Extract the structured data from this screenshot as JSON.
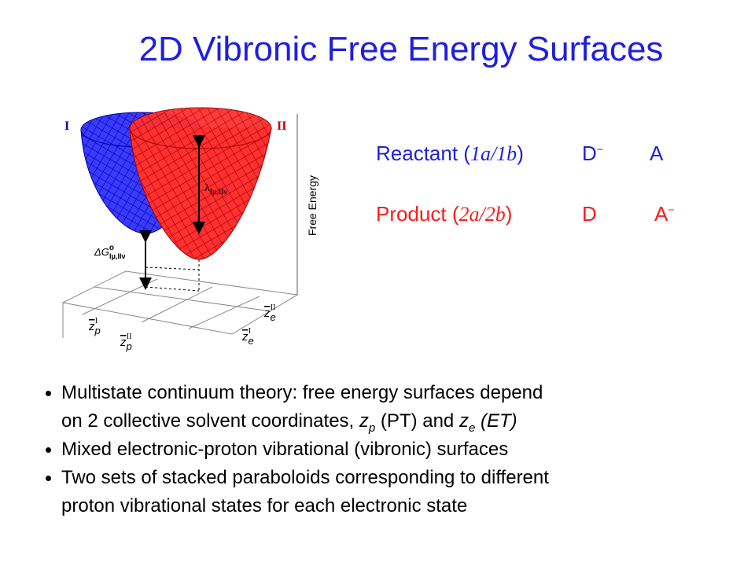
{
  "title": "2D Vibronic Free Energy Surfaces",
  "figure": {
    "surface_labels": [
      "I",
      "II"
    ],
    "axis_label": "Free Energy",
    "lambda_label": {
      "symbol": "λ",
      "subscript": "Iμ,IIν"
    },
    "delta_g_label": {
      "symbol": "ΔG",
      "superscript": "o",
      "subscript": "Iμ,IIν"
    },
    "coordinate_labels": [
      {
        "symbol": "z",
        "sub": "p",
        "sup": "I"
      },
      {
        "symbol": "z",
        "sub": "p",
        "sup": "II"
      },
      {
        "symbol": "z",
        "sub": "e",
        "sup": "I"
      },
      {
        "symbol": "z",
        "sub": "e",
        "sup": "II"
      }
    ]
  },
  "states": [
    {
      "label": "Reactant (",
      "index": "1a/1b",
      "close": ")",
      "donor": "D",
      "donor_charge": "−",
      "acceptor": "A"
    },
    {
      "label": "Product (",
      "index": "2a/2b",
      "close": ")",
      "donor": "D",
      "acceptor": "A",
      "acceptor_charge": "−"
    }
  ],
  "bullets": [
    {
      "line1": "Multistate continuum theory: free energy surfaces depend",
      "line2": {
        "start": "on 2 collective solvent coordinates, ",
        "var1": "z",
        "sub1": "p",
        "mid": " (PT) and ",
        "var2": "z",
        "sub2": "e",
        "end": " (ET)"
      }
    },
    {
      "line1": "Mixed electronic-proton vibrational (vibronic) surfaces"
    },
    {
      "line1": "Two sets of stacked paraboloids corresponding to different",
      "line2": "proton vibrational states for each electronic state"
    }
  ]
}
